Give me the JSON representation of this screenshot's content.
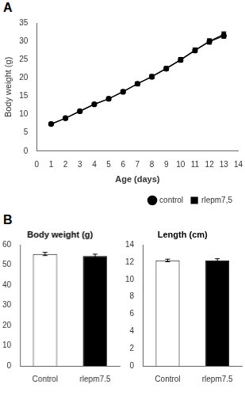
{
  "chart_data": [
    {
      "type": "line",
      "annotation": "A",
      "x": [
        1,
        2,
        3,
        4,
        5,
        6,
        7,
        8,
        9,
        10,
        11,
        12,
        13
      ],
      "series": [
        {
          "name": "control",
          "color": "black",
          "marker": "circle",
          "values": [
            7.4,
            9.0,
            10.9,
            12.8,
            14.3,
            16.2,
            18.4,
            20.3,
            22.5,
            24.9,
            27.5,
            29.9,
            31.5
          ],
          "errors": [
            0.3,
            0.3,
            0.3,
            0.4,
            0.4,
            0.4,
            0.5,
            0.5,
            0.5,
            0.6,
            0.6,
            0.7,
            0.7
          ]
        },
        {
          "name": "rlepm7,5",
          "color": "black",
          "marker": "square",
          "values": [
            7.4,
            9.0,
            10.9,
            12.8,
            14.3,
            16.3,
            18.4,
            20.4,
            22.6,
            25.0,
            27.6,
            30.0,
            31.9
          ],
          "errors": [
            0.3,
            0.3,
            0.3,
            0.4,
            0.4,
            0.4,
            0.5,
            0.5,
            0.5,
            0.6,
            0.6,
            0.7,
            0.7
          ]
        }
      ],
      "xlabel": "Age (days)",
      "ylabel": "Body weight (g)",
      "xlim": [
        0,
        14
      ],
      "ylim": [
        0,
        35
      ],
      "xticks": [
        0,
        1,
        2,
        3,
        4,
        5,
        6,
        7,
        8,
        9,
        10,
        11,
        12,
        13,
        14
      ],
      "yticks": [
        0,
        5,
        10,
        15,
        20,
        25,
        30,
        35
      ],
      "legend": "lower right",
      "grid": false
    },
    {
      "type": "bar",
      "annotation": "B",
      "title": "Body weight (g)",
      "categories": [
        "Control",
        "rlepm7.5"
      ],
      "values": [
        55.5,
        54.5
      ],
      "errors": [
        0.8,
        0.9
      ],
      "colors": [
        "white",
        "black"
      ],
      "ylim": [
        0,
        60
      ],
      "yticks": [
        0,
        10,
        20,
        30,
        40,
        50,
        60
      ],
      "grid": false
    },
    {
      "type": "bar",
      "title": "Length (cm)",
      "categories": [
        "Control",
        "rlepm7.5"
      ],
      "values": [
        12.2,
        12.2
      ],
      "errors": [
        0.15,
        0.2
      ],
      "colors": [
        "white",
        "black"
      ],
      "ylim": [
        0,
        14
      ],
      "yticks": [
        0,
        2,
        4,
        6,
        8,
        10,
        12,
        14
      ],
      "grid": false
    }
  ]
}
